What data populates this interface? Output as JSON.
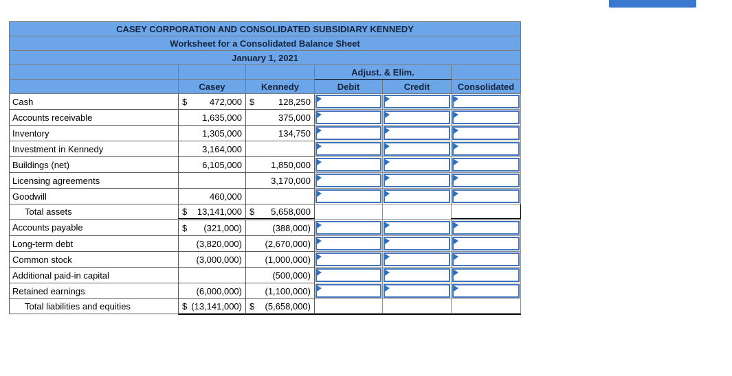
{
  "worksheet": {
    "title": "CASEY CORPORATION AND CONSOLIDATED SUBSIDIARY KENNEDY",
    "subtitle": "Worksheet for a Consolidated Balance Sheet",
    "date": "January 1, 2021",
    "column_headers": {
      "company1": "Casey",
      "company2": "Kennedy",
      "adjustments_group": "Adjust. & Elim.",
      "debit": "Debit",
      "credit": "Credit",
      "consolidated": "Consolidated"
    },
    "rows": [
      {
        "label": "Cash",
        "indent": false,
        "casey_prefix": "$",
        "casey": "472,000",
        "kennedy_prefix": "$",
        "kennedy": "128,250",
        "debit_input": true,
        "credit_input": true,
        "consolidated_input": true,
        "style": "normal"
      },
      {
        "label": "Accounts receivable",
        "indent": false,
        "casey_prefix": "",
        "casey": "1,635,000",
        "kennedy_prefix": "",
        "kennedy": "375,000",
        "debit_input": true,
        "credit_input": true,
        "consolidated_input": true,
        "style": "normal"
      },
      {
        "label": "Inventory",
        "indent": false,
        "casey_prefix": "",
        "casey": "1,305,000",
        "kennedy_prefix": "",
        "kennedy": "134,750",
        "debit_input": true,
        "credit_input": true,
        "consolidated_input": true,
        "style": "normal"
      },
      {
        "label": "Investment in Kennedy",
        "indent": false,
        "casey_prefix": "",
        "casey": "3,164,000",
        "kennedy_prefix": "",
        "kennedy": "",
        "debit_input": true,
        "credit_input": true,
        "consolidated_input": true,
        "style": "normal"
      },
      {
        "label": "Buildings (net)",
        "indent": false,
        "casey_prefix": "",
        "casey": "6,105,000",
        "kennedy_prefix": "",
        "kennedy": "1,850,000",
        "debit_input": true,
        "credit_input": true,
        "consolidated_input": true,
        "style": "normal"
      },
      {
        "label": "Licensing agreements",
        "indent": false,
        "casey_prefix": "",
        "casey": "",
        "kennedy_prefix": "",
        "kennedy": "3,170,000",
        "debit_input": true,
        "credit_input": true,
        "consolidated_input": true,
        "style": "normal"
      },
      {
        "label": "Goodwill",
        "indent": false,
        "casey_prefix": "",
        "casey": "460,000",
        "kennedy_prefix": "",
        "kennedy": "",
        "debit_input": true,
        "credit_input": true,
        "consolidated_input": true,
        "style": "normal"
      },
      {
        "label": "Total assets",
        "indent": true,
        "casey_prefix": "$",
        "casey": "13,141,000",
        "kennedy_prefix": "$",
        "kennedy": "5,658,000",
        "debit_input": false,
        "credit_input": false,
        "consolidated_input": false,
        "style": "total"
      },
      {
        "label": "Accounts payable",
        "indent": false,
        "casey_prefix": "$",
        "casey": "(321,000)",
        "kennedy_prefix": "",
        "kennedy": "(388,000)",
        "debit_input": true,
        "credit_input": true,
        "consolidated_input": true,
        "style": "normal"
      },
      {
        "label": "Long-term debt",
        "indent": false,
        "casey_prefix": "",
        "casey": "(3,820,000)",
        "kennedy_prefix": "",
        "kennedy": "(2,670,000)",
        "debit_input": true,
        "credit_input": true,
        "consolidated_input": true,
        "style": "normal"
      },
      {
        "label": "Common stock",
        "indent": false,
        "casey_prefix": "",
        "casey": "(3,000,000)",
        "kennedy_prefix": "",
        "kennedy": "(1,000,000)",
        "debit_input": true,
        "credit_input": true,
        "consolidated_input": true,
        "style": "normal"
      },
      {
        "label": "Additional paid-in capital",
        "indent": false,
        "casey_prefix": "",
        "casey": "",
        "kennedy_prefix": "",
        "kennedy": "(500,000)",
        "debit_input": true,
        "credit_input": true,
        "consolidated_input": true,
        "style": "normal"
      },
      {
        "label": "Retained earnings",
        "indent": false,
        "casey_prefix": "",
        "casey": "(6,000,000)",
        "kennedy_prefix": "",
        "kennedy": "(1,100,000)",
        "debit_input": true,
        "credit_input": true,
        "consolidated_input": true,
        "style": "normal"
      },
      {
        "label": "Total liabilities and equities",
        "indent": true,
        "casey_prefix": "$",
        "casey": "(13,141,000)",
        "kennedy_prefix": "$",
        "kennedy": "(5,658,000)",
        "debit_input": false,
        "credit_input": false,
        "consolidated_input": false,
        "style": "grand"
      }
    ]
  },
  "colors": {
    "header_blue": "#6ca6e8",
    "header_text": "#16243d",
    "input_box_border_blue": "#4173bd",
    "input_marker_blue": "#2e6fba",
    "top_button_blue": "#3b78d0"
  }
}
